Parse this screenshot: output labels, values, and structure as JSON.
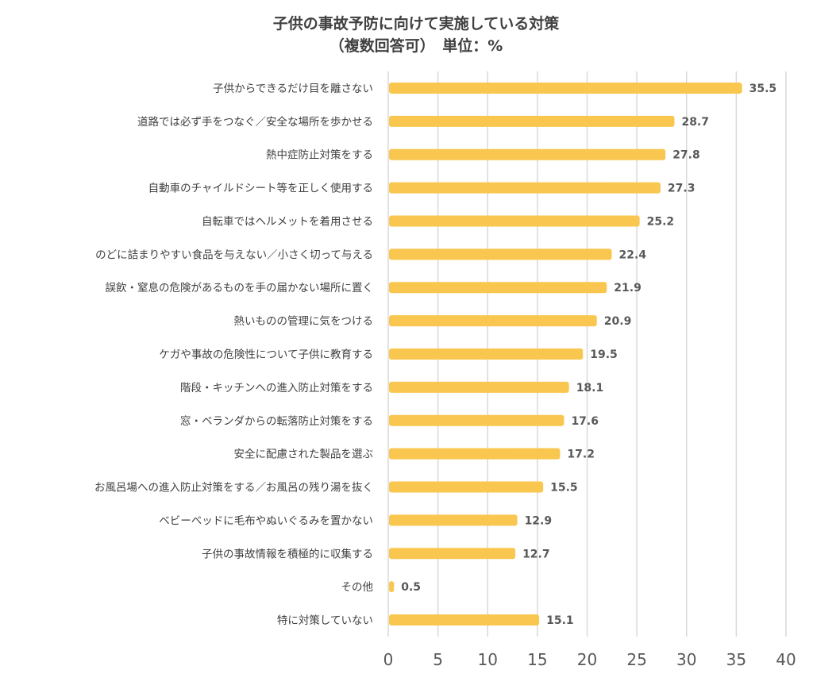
{
  "chart_data": {
    "type": "bar",
    "orientation": "horizontal",
    "title": "子供の事故予防に向けて実施している対策",
    "subtitle": "（複数回答可）　単位：%",
    "xlabel": "",
    "ylabel": "",
    "xlim": [
      0,
      40
    ],
    "x_ticks": [
      0,
      5,
      10,
      15,
      20,
      25,
      30,
      35,
      40
    ],
    "grid": true,
    "legend": "none",
    "bar_color": "#F9C74F",
    "categories": [
      "子供からできるだけ目を離さない",
      "道路では必ず手をつなぐ／安全な場所を歩かせる",
      "熱中症防止対策をする",
      "自動車のチャイルドシート等を正しく使用する",
      "自転車ではヘルメットを着用させる",
      "のどに詰まりやすい食品を与えない／小さく切って与える",
      "誤飲・窒息の危険があるものを手の届かない場所に置く",
      "熱いものの管理に気をつける",
      "ケガや事故の危険性について子供に教育する",
      "階段・キッチンへの進入防止対策をする",
      "窓・ベランダからの転落防止対策をする",
      "安全に配慮された製品を選ぶ",
      "お風呂場への進入防止対策をする／お風呂の残り湯を抜く",
      "ベビーベッドに毛布やぬいぐるみを置かない",
      "子供の事故情報を積極的に収集する",
      "その他",
      "特に対策していない"
    ],
    "values": [
      35.5,
      28.7,
      27.8,
      27.3,
      25.2,
      22.4,
      21.9,
      20.9,
      19.5,
      18.1,
      17.6,
      17.2,
      15.5,
      12.9,
      12.7,
      0.5,
      15.1
    ],
    "value_labels": [
      "35.5",
      "28.7",
      "27.8",
      "27.3",
      "25.2",
      "22.4",
      "21.9",
      "20.9",
      "19.5",
      "18.1",
      "17.6",
      "17.2",
      "15.5",
      "12.9",
      "12.7",
      "0.5",
      "15.1"
    ]
  }
}
